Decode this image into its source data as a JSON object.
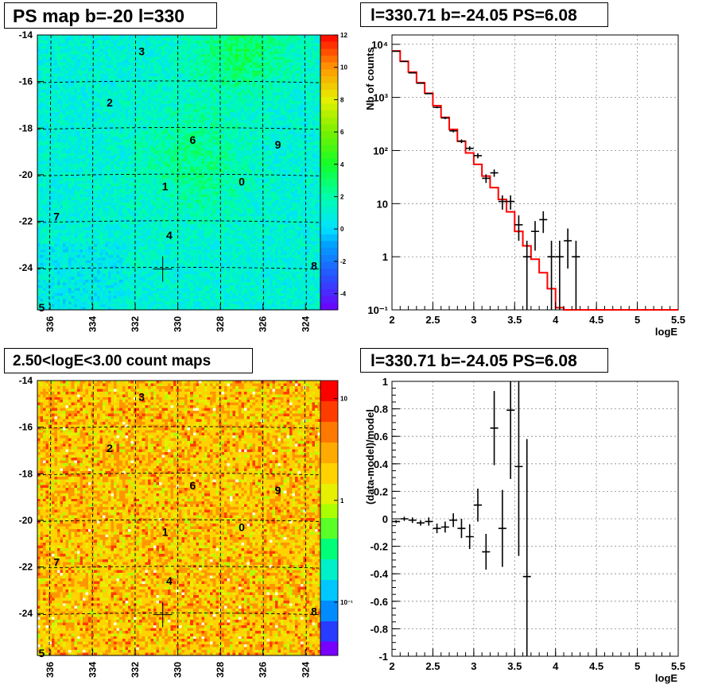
{
  "panels": {
    "ps_map": {
      "title": "PS map b=-20 l=330",
      "x_ticks": [
        "336",
        "334",
        "332",
        "330",
        "328",
        "326",
        "324"
      ],
      "y_ticks": [
        "-14",
        "-16",
        "-18",
        "-20",
        "-22",
        "-24"
      ],
      "colorbar_ticks": [
        "12",
        "10",
        "8",
        "6",
        "4",
        "2",
        "0",
        "-2",
        "-4"
      ],
      "colorbar_range": [
        -5,
        12
      ],
      "source_labels": [
        "0",
        "1",
        "2",
        "3",
        "4",
        "5",
        "6",
        "7",
        "8",
        "9"
      ]
    },
    "count_map": {
      "title": "2.50<logE<3.00 count maps",
      "x_ticks": [
        "336",
        "334",
        "332",
        "330",
        "328",
        "326",
        "324"
      ],
      "y_ticks": [
        "-14",
        "-16",
        "-18",
        "-20",
        "-22",
        "-24"
      ],
      "colorbar_ticks": [
        "10",
        "1",
        "10⁻¹"
      ],
      "source_labels": [
        "0",
        "1",
        "2",
        "3",
        "4",
        "5",
        "6",
        "7",
        "8",
        "9"
      ]
    },
    "spectrum": {
      "title": "l=330.71 b=-24.05 PS=6.08",
      "xlabel": "logE",
      "ylabel": "Nb of counts",
      "x_ticks": [
        "2",
        "2.5",
        "3",
        "3.5",
        "4",
        "4.5",
        "5",
        "5.5"
      ],
      "y_ticks": [
        "10⁻¹",
        "1",
        "10",
        "10²",
        "10³",
        "10⁴"
      ]
    },
    "residual": {
      "title": "l=330.71 b=-24.05 PS=6.08",
      "xlabel": "logE",
      "ylabel": "(data-model)/model",
      "x_ticks": [
        "2",
        "2.5",
        "3",
        "3.5",
        "4",
        "4.5",
        "5",
        "5.5"
      ],
      "y_ticks": [
        "1",
        "0.8",
        "0.6",
        "0.4",
        "0.2",
        "0",
        "-0.2",
        "-0.4",
        "-0.6",
        "-0.8",
        "-1"
      ]
    }
  },
  "chart_data": [
    {
      "type": "heatmap",
      "title": "PS map b=-20 l=330",
      "xlim": [
        336.6,
        323.3
      ],
      "ylim": [
        -25.8,
        -14
      ],
      "z_range": [
        -5,
        12
      ],
      "colors": {
        "high": "#ff0000",
        "mid": "#00ff40",
        "zero": "#00e0ff",
        "low": "#6600ff"
      },
      "sources": [
        {
          "label": "0",
          "l": 327.0,
          "b": -20.3
        },
        {
          "label": "1",
          "l": 330.6,
          "b": -20.5
        },
        {
          "label": "2",
          "l": 333.2,
          "b": -16.9
        },
        {
          "label": "3",
          "l": 331.7,
          "b": -14.7
        },
        {
          "label": "4",
          "l": 330.4,
          "b": -22.6
        },
        {
          "label": "5",
          "l": 336.4,
          "b": -25.7
        },
        {
          "label": "6",
          "l": 329.3,
          "b": -18.5
        },
        {
          "label": "7",
          "l": 335.7,
          "b": -21.8
        },
        {
          "label": "8",
          "l": 323.6,
          "b": -23.9
        },
        {
          "label": "9",
          "l": 325.3,
          "b": -18.7
        }
      ],
      "marker": {
        "l": 330.71,
        "b": -24.05
      }
    },
    {
      "type": "heatmap",
      "title": "2.50<logE<3.00 count maps",
      "xlim": [
        336.6,
        323.3
      ],
      "ylim": [
        -25.8,
        -14
      ],
      "z_scale": "log",
      "z_range": [
        0.03,
        15
      ],
      "sources": [
        {
          "label": "0",
          "l": 327.0,
          "b": -20.3
        },
        {
          "label": "1",
          "l": 330.6,
          "b": -20.5
        },
        {
          "label": "2",
          "l": 333.2,
          "b": -16.9
        },
        {
          "label": "3",
          "l": 331.7,
          "b": -14.7
        },
        {
          "label": "4",
          "l": 330.4,
          "b": -22.6
        },
        {
          "label": "5",
          "l": 336.4,
          "b": -25.7
        },
        {
          "label": "6",
          "l": 329.3,
          "b": -18.5
        },
        {
          "label": "7",
          "l": 335.7,
          "b": -21.8
        },
        {
          "label": "8",
          "l": 323.6,
          "b": -23.9
        },
        {
          "label": "9",
          "l": 325.3,
          "b": -18.7
        }
      ],
      "marker": {
        "l": 330.71,
        "b": -24.05
      }
    },
    {
      "type": "line",
      "title": "l=330.71 b=-24.05 PS=6.08",
      "xlabel": "logE",
      "ylabel": "Nb of counts",
      "xlim": [
        2,
        5.5
      ],
      "ylim": [
        0.1,
        15000
      ],
      "y_scale": "log",
      "grid": true,
      "model": {
        "color": "#ff0000",
        "bin_edges": [
          2.0,
          2.1,
          2.2,
          2.3,
          2.4,
          2.5,
          2.6,
          2.7,
          2.8,
          2.9,
          3.0,
          3.1,
          3.2,
          3.3,
          3.4,
          3.5,
          3.6,
          3.7,
          3.8,
          3.9,
          4.0,
          4.1,
          5.5
        ],
        "values": [
          7500,
          4800,
          3000,
          1900,
          1200,
          700,
          420,
          250,
          150,
          90,
          55,
          33,
          20,
          12,
          7,
          3,
          1.6,
          0.9,
          0.5,
          0.25,
          0.11,
          0.1
        ]
      },
      "data": {
        "color": "#000000",
        "x": [
          2.05,
          2.15,
          2.25,
          2.35,
          2.45,
          2.55,
          2.65,
          2.75,
          2.85,
          2.95,
          3.05,
          3.15,
          3.25,
          3.35,
          3.45,
          3.55,
          3.65,
          3.75,
          3.85,
          3.95,
          4.05,
          4.15,
          4.25
        ],
        "y": [
          7400,
          4750,
          2900,
          1850,
          1180,
          650,
          410,
          235,
          150,
          110,
          80,
          30,
          38,
          11,
          11,
          4,
          1,
          3,
          5,
          1,
          1,
          2,
          1
        ],
        "err_lo": [
          86,
          69,
          54,
          43,
          34,
          26,
          20,
          15,
          12,
          10,
          9,
          5.5,
          6,
          3.3,
          3.3,
          2,
          1,
          1.7,
          2.2,
          1,
          1,
          1.4,
          1
        ],
        "err_hi": [
          86,
          69,
          54,
          43,
          34,
          26,
          20,
          15,
          12,
          10,
          9,
          5.5,
          6,
          3.3,
          3.3,
          2,
          1,
          1.7,
          2.2,
          1,
          1,
          1.4,
          1
        ]
      }
    },
    {
      "type": "scatter",
      "title": "l=330.71 b=-24.05 PS=6.08",
      "xlabel": "logE",
      "ylabel": "(data-model)/model",
      "xlim": [
        2,
        5.5
      ],
      "ylim": [
        -1,
        1
      ],
      "grid": true,
      "data": {
        "x": [
          2.05,
          2.15,
          2.25,
          2.35,
          2.45,
          2.55,
          2.65,
          2.75,
          2.85,
          2.95,
          3.05,
          3.15,
          3.25,
          3.35,
          3.45,
          3.55,
          3.65
        ],
        "y": [
          -0.02,
          0.0,
          -0.01,
          -0.03,
          -0.02,
          -0.07,
          -0.06,
          -0.01,
          -0.07,
          -0.13,
          0.1,
          -0.24,
          0.66,
          -0.07,
          0.79,
          0.38,
          -0.42
        ],
        "err": [
          0.01,
          0.015,
          0.02,
          0.02,
          0.03,
          0.035,
          0.04,
          0.05,
          0.07,
          0.09,
          0.12,
          0.13,
          0.27,
          0.28,
          0.5,
          0.65,
          1.0
        ]
      }
    }
  ]
}
